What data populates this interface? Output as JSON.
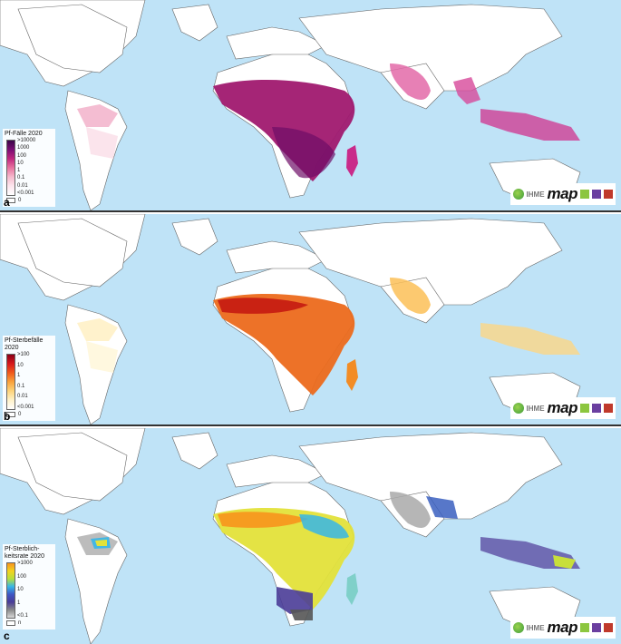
{
  "panels": [
    {
      "letter": "a",
      "legend_title": "Pf-Fälle 2020",
      "legend_ticks": [
        ">10000",
        "1000",
        "100",
        "10",
        "1",
        "0.1",
        "0.01",
        "<0.001"
      ],
      "legend_low": "0",
      "colors": {
        "high": "#5b0a63",
        "mid": "#c92b8a",
        "low": "#f7c4d6",
        "min": "#fdeef2"
      }
    },
    {
      "letter": "b",
      "legend_title": "Pf-Sterbefälle 2020",
      "legend_ticks": [
        ">100",
        "10",
        "1",
        "0.1",
        "0.01",
        "<0.001"
      ],
      "legend_low": "0",
      "colors": {
        "high": "#a3001b",
        "mid": "#f05a16",
        "low": "#fdd37a",
        "min": "#fff7dc"
      }
    },
    {
      "letter": "c",
      "legend_title": "Pf-Sterblich- keitsrate 2020",
      "legend_ticks": [
        ">1000",
        "100",
        "10",
        "1",
        "<0.1"
      ],
      "legend_low": "n",
      "colors": {
        "high": "#f7941d",
        "mid": "#36b6e8",
        "low": "#4a3c97",
        "min": "#9a9a9a"
      }
    }
  ],
  "logos": {
    "ihme": "IHME",
    "map": "map"
  },
  "colors": {
    "ocean": "#bfe3f7",
    "land": "#ffffff",
    "border": "#555555"
  }
}
